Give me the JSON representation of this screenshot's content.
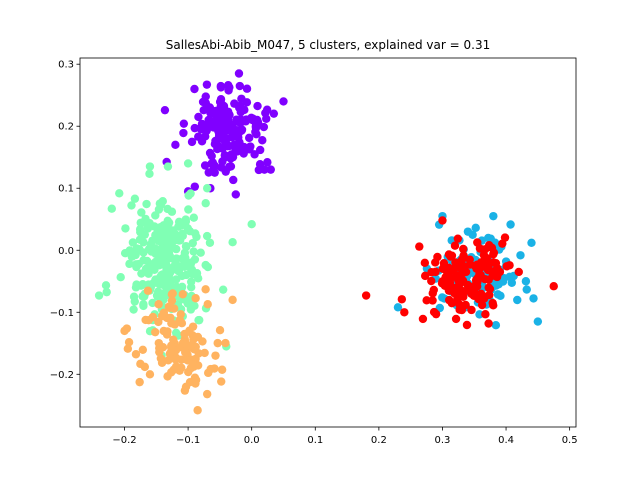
{
  "chart_data": {
    "type": "scatter",
    "title": "SallesAbi-Abib_M047, 5 clusters, explained var = 0.31",
    "xlabel": "",
    "ylabel": "",
    "xlim": [
      -0.27,
      0.51
    ],
    "ylim": [
      -0.285,
      0.31
    ],
    "xticks": [
      -0.2,
      -0.1,
      0.0,
      0.1,
      0.2,
      0.3,
      0.4,
      0.5
    ],
    "xtick_labels": [
      "−0.2",
      "−0.1",
      "0.0",
      "0.1",
      "0.2",
      "0.3",
      "0.4",
      "0.5"
    ],
    "yticks": [
      -0.2,
      -0.1,
      0.0,
      0.1,
      0.2,
      0.3
    ],
    "ytick_labels": [
      "−0.2",
      "−0.1",
      "0.0",
      "0.1",
      "0.2",
      "0.3"
    ],
    "grid": false,
    "legend": "none",
    "series": [
      {
        "color": "#8000ff",
        "center": [
          -0.035,
          0.195
        ],
        "spread": [
          0.03,
          0.035
        ],
        "count": 170,
        "points": [
          [
            -0.1,
            0.095
          ],
          [
            -0.065,
            0.1
          ],
          [
            -0.025,
            0.09
          ],
          [
            0.02,
            0.13
          ],
          [
            0.05,
            0.24
          ],
          [
            -0.09,
            0.26
          ],
          [
            -0.02,
            0.285
          ],
          [
            0.03,
            0.13
          ],
          [
            -0.12,
            0.17
          ]
        ]
      },
      {
        "color": "#1ab2e6",
        "center": [
          0.35,
          -0.035
        ],
        "spread": [
          0.035,
          0.03
        ],
        "count": 120,
        "points": [
          [
            0.3,
            0.055
          ],
          [
            0.38,
            0.055
          ],
          [
            0.45,
            -0.115
          ],
          [
            0.23,
            -0.092
          ],
          [
            0.44,
            0.012
          ],
          [
            0.34,
            0.03
          ]
        ]
      },
      {
        "color": "#80ffb4",
        "center": [
          -0.135,
          -0.02
        ],
        "spread": [
          0.03,
          0.055
        ],
        "count": 260,
        "points": [
          [
            -0.22,
            0.067
          ],
          [
            -0.24,
            -0.073
          ],
          [
            -0.16,
            0.135
          ],
          [
            -0.07,
            0.1
          ],
          [
            0.0,
            0.042
          ],
          [
            -0.03,
            0.013
          ],
          [
            -0.04,
            -0.155
          ],
          [
            -0.1,
            0.14
          ]
        ]
      },
      {
        "color": "#ffb360",
        "center": [
          -0.115,
          -0.15
        ],
        "spread": [
          0.03,
          0.04
        ],
        "count": 110,
        "points": [
          [
            -0.085,
            -0.258
          ],
          [
            -0.2,
            -0.13
          ],
          [
            -0.03,
            -0.08
          ],
          [
            -0.07,
            -0.232
          ],
          [
            -0.16,
            -0.2
          ]
        ]
      },
      {
        "color": "#ff0000",
        "center": [
          0.335,
          -0.045
        ],
        "spread": [
          0.035,
          0.03
        ],
        "count": 140,
        "points": [
          [
            0.18,
            -0.073
          ],
          [
            0.475,
            -0.058
          ],
          [
            0.29,
            -0.103
          ],
          [
            0.3,
            0.048
          ],
          [
            0.42,
            -0.035
          ],
          [
            0.24,
            -0.1
          ],
          [
            0.36,
            -0.08
          ]
        ]
      }
    ]
  }
}
